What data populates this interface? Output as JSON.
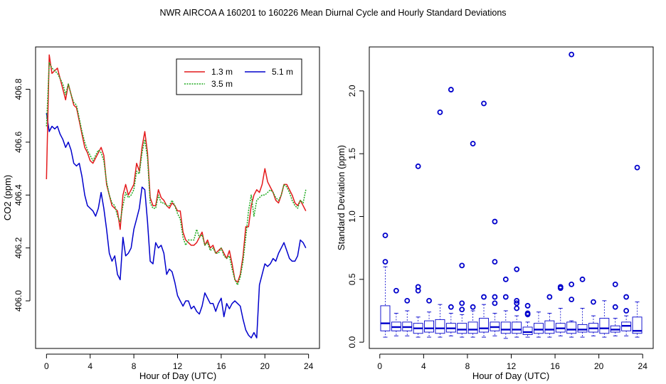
{
  "title": "NWR   AIRCOA A   160201 to 160226   Mean Diurnal Cycle and Hourly Standard Deviations",
  "chart_data": [
    {
      "type": "line",
      "xlabel": "Hour of Day (UTC)",
      "ylabel": "CO2 (ppm)",
      "xlim": [
        -1,
        25
      ],
      "ylim": [
        405.82,
        406.96
      ],
      "xticks": [
        0,
        4,
        8,
        12,
        16,
        20,
        24
      ],
      "yticks": [
        "406.0",
        "406.2",
        "406.4",
        "406.6",
        "406.8"
      ],
      "ytick_values": [
        406.0,
        406.2,
        406.4,
        406.6,
        406.8
      ],
      "x_step": 0.25,
      "legend_position": "top-right",
      "series": [
        {
          "name": "1.3 m",
          "color": "#e41a1c",
          "values": [
            406.46,
            406.93,
            406.86,
            406.87,
            406.88,
            406.84,
            406.8,
            406.76,
            406.82,
            406.78,
            406.74,
            406.73,
            406.68,
            406.63,
            406.58,
            406.56,
            406.53,
            406.52,
            406.54,
            406.56,
            406.58,
            406.55,
            406.44,
            406.4,
            406.36,
            406.35,
            406.34,
            406.27,
            406.4,
            406.44,
            406.4,
            406.42,
            406.44,
            406.52,
            406.49,
            406.58,
            406.64,
            406.56,
            406.39,
            406.36,
            406.36,
            406.42,
            406.39,
            406.38,
            406.36,
            406.35,
            406.37,
            406.36,
            406.34,
            406.34,
            406.26,
            406.23,
            406.22,
            406.21,
            406.21,
            406.22,
            406.24,
            406.26,
            406.21,
            406.23,
            406.2,
            406.21,
            406.18,
            406.19,
            406.2,
            406.18,
            406.16,
            406.19,
            406.14,
            406.08,
            406.07,
            406.1,
            406.17,
            406.28,
            406.28,
            406.36,
            406.4,
            406.42,
            406.41,
            406.44,
            406.5,
            406.45,
            406.43,
            406.41,
            406.38,
            406.37,
            406.4,
            406.44,
            406.44,
            406.42,
            406.4,
            406.37,
            406.36,
            406.38,
            406.36,
            406.34
          ]
        },
        {
          "name": "3.5 m",
          "color": "#1faa1f",
          "values": [
            406.66,
            406.9,
            406.88,
            406.87,
            406.86,
            406.84,
            406.82,
            406.78,
            406.82,
            406.78,
            406.75,
            406.74,
            406.69,
            406.64,
            406.6,
            406.57,
            406.55,
            406.53,
            406.55,
            406.57,
            406.56,
            406.53,
            406.45,
            406.4,
            406.37,
            406.36,
            406.32,
            406.3,
            406.36,
            406.41,
            406.39,
            406.4,
            406.42,
            406.49,
            406.48,
            406.56,
            406.61,
            406.54,
            406.37,
            406.35,
            406.35,
            406.4,
            406.37,
            406.37,
            406.36,
            406.36,
            406.38,
            406.36,
            406.33,
            406.31,
            406.24,
            406.21,
            406.23,
            406.23,
            406.23,
            406.27,
            406.24,
            406.25,
            406.21,
            406.22,
            406.19,
            406.2,
            406.18,
            406.18,
            406.2,
            406.17,
            406.16,
            406.17,
            406.12,
            406.08,
            406.06,
            406.09,
            406.15,
            406.24,
            406.34,
            406.4,
            406.32,
            406.38,
            406.39,
            406.4,
            406.4,
            406.41,
            406.42,
            406.41,
            406.39,
            406.38,
            406.4,
            406.44,
            406.43,
            406.41,
            406.38,
            406.36,
            406.35,
            406.38,
            406.37,
            406.42
          ]
        },
        {
          "name": "5.1 m",
          "color": "#0000cc",
          "values": [
            406.71,
            406.64,
            406.66,
            406.65,
            406.66,
            406.63,
            406.61,
            406.58,
            406.6,
            406.57,
            406.52,
            406.51,
            406.52,
            406.47,
            406.4,
            406.36,
            406.35,
            406.34,
            406.32,
            406.35,
            406.41,
            406.35,
            406.27,
            406.18,
            406.15,
            406.17,
            406.1,
            406.08,
            406.24,
            406.17,
            406.18,
            406.2,
            406.27,
            406.31,
            406.35,
            406.43,
            406.42,
            406.3,
            406.15,
            406.14,
            406.22,
            406.2,
            406.21,
            406.18,
            406.1,
            406.12,
            406.11,
            406.07,
            406.02,
            406.0,
            405.98,
            406.0,
            406.0,
            405.97,
            405.98,
            405.96,
            405.95,
            405.98,
            406.03,
            406.01,
            405.99,
            405.99,
            405.96,
            405.99,
            406.01,
            405.94,
            405.99,
            405.97,
            405.99,
            406.0,
            405.99,
            405.98,
            405.93,
            405.89,
            405.87,
            405.86,
            405.88,
            405.86,
            406.06,
            406.1,
            406.14,
            406.13,
            406.14,
            406.16,
            406.15,
            406.18,
            406.2,
            406.22,
            406.19,
            406.16,
            406.15,
            406.15,
            406.17,
            406.23,
            406.22,
            406.2
          ]
        }
      ]
    },
    {
      "type": "box",
      "xlabel": "Hour of Day (UTC)",
      "ylabel": "Standard Deviation (ppm)",
      "xlim": [
        -0.96,
        24.96
      ],
      "ylim": [
        -0.05,
        2.35
      ],
      "xticks": [
        0,
        4,
        8,
        12,
        16,
        20,
        24
      ],
      "yticks": [
        "0.0",
        "0.5",
        "1.0",
        "1.5",
        "2.0"
      ],
      "ytick_values": [
        0.0,
        0.5,
        1.0,
        1.5,
        2.0
      ],
      "color": "#0000cc",
      "boxes": [
        {
          "hour": 0.5,
          "low": 0.04,
          "q1": 0.09,
          "median": 0.15,
          "q3": 0.29,
          "high": 0.6,
          "outliers": [
            0.85,
            0.64
          ]
        },
        {
          "hour": 1.5,
          "low": 0.05,
          "q1": 0.09,
          "median": 0.12,
          "q3": 0.16,
          "high": 0.23,
          "outliers": [
            0.41
          ]
        },
        {
          "hour": 2.5,
          "low": 0.05,
          "q1": 0.09,
          "median": 0.12,
          "q3": 0.16,
          "high": 0.25,
          "outliers": [
            0.33
          ]
        },
        {
          "hour": 3.5,
          "low": 0.04,
          "q1": 0.07,
          "median": 0.11,
          "q3": 0.15,
          "high": 0.2,
          "outliers": [
            1.4,
            0.44,
            0.41
          ]
        },
        {
          "hour": 4.5,
          "low": 0.04,
          "q1": 0.08,
          "median": 0.11,
          "q3": 0.17,
          "high": 0.24,
          "outliers": [
            0.33
          ]
        },
        {
          "hour": 5.5,
          "low": 0.04,
          "q1": 0.07,
          "median": 0.11,
          "q3": 0.18,
          "high": 0.3,
          "outliers": [
            1.83
          ]
        },
        {
          "hour": 6.5,
          "low": 0.05,
          "q1": 0.08,
          "median": 0.11,
          "q3": 0.15,
          "high": 0.23,
          "outliers": [
            2.01,
            0.28
          ]
        },
        {
          "hour": 7.5,
          "low": 0.04,
          "q1": 0.07,
          "median": 0.1,
          "q3": 0.15,
          "high": 0.22,
          "outliers": [
            0.61,
            0.31,
            0.26
          ]
        },
        {
          "hour": 8.5,
          "low": 0.04,
          "q1": 0.07,
          "median": 0.1,
          "q3": 0.16,
          "high": 0.25,
          "outliers": [
            1.58,
            0.28
          ]
        },
        {
          "hour": 9.5,
          "low": 0.04,
          "q1": 0.08,
          "median": 0.11,
          "q3": 0.19,
          "high": 0.3,
          "outliers": [
            1.9,
            0.36
          ]
        },
        {
          "hour": 10.5,
          "low": 0.05,
          "q1": 0.09,
          "median": 0.12,
          "q3": 0.16,
          "high": 0.23,
          "outliers": [
            0.96,
            0.64,
            0.36,
            0.31
          ]
        },
        {
          "hour": 11.5,
          "low": 0.03,
          "q1": 0.07,
          "median": 0.1,
          "q3": 0.16,
          "high": 0.25,
          "outliers": [
            0.5,
            0.36
          ]
        },
        {
          "hour": 12.5,
          "low": 0.04,
          "q1": 0.07,
          "median": 0.1,
          "q3": 0.16,
          "high": 0.21,
          "outliers": [
            0.58,
            0.33,
            0.31,
            0.27
          ]
        },
        {
          "hour": 13.5,
          "low": 0.04,
          "q1": 0.06,
          "median": 0.08,
          "q3": 0.12,
          "high": 0.16,
          "outliers": [
            0.29,
            0.23,
            0.22
          ]
        },
        {
          "hour": 14.5,
          "low": 0.04,
          "q1": 0.07,
          "median": 0.1,
          "q3": 0.15,
          "high": 0.24,
          "outliers": []
        },
        {
          "hour": 15.5,
          "low": 0.04,
          "q1": 0.07,
          "median": 0.1,
          "q3": 0.17,
          "high": 0.23,
          "outliers": [
            0.36
          ]
        },
        {
          "hour": 16.5,
          "low": 0.05,
          "q1": 0.08,
          "median": 0.11,
          "q3": 0.15,
          "high": 0.27,
          "outliers": [
            0.44,
            0.43
          ]
        },
        {
          "hour": 17.5,
          "low": 0.04,
          "q1": 0.07,
          "median": 0.1,
          "q3": 0.16,
          "high": 0.17,
          "outliers": [
            2.29,
            0.46,
            0.34
          ]
        },
        {
          "hour": 18.5,
          "low": 0.04,
          "q1": 0.08,
          "median": 0.1,
          "q3": 0.14,
          "high": 0.27,
          "outliers": [
            0.5
          ]
        },
        {
          "hour": 19.5,
          "low": 0.05,
          "q1": 0.08,
          "median": 0.11,
          "q3": 0.15,
          "high": 0.21,
          "outliers": [
            0.32
          ]
        },
        {
          "hour": 20.5,
          "low": 0.04,
          "q1": 0.07,
          "median": 0.11,
          "q3": 0.19,
          "high": 0.33,
          "outliers": []
        },
        {
          "hour": 21.5,
          "low": 0.05,
          "q1": 0.08,
          "median": 0.1,
          "q3": 0.13,
          "high": 0.19,
          "outliers": [
            0.46,
            0.28
          ]
        },
        {
          "hour": 22.5,
          "low": 0.05,
          "q1": 0.09,
          "median": 0.13,
          "q3": 0.16,
          "high": 0.21,
          "outliers": [
            0.36,
            0.25
          ]
        },
        {
          "hour": 23.5,
          "low": 0.04,
          "q1": 0.07,
          "median": 0.09,
          "q3": 0.2,
          "high": 0.32,
          "outliers": [
            1.39
          ]
        }
      ]
    }
  ]
}
